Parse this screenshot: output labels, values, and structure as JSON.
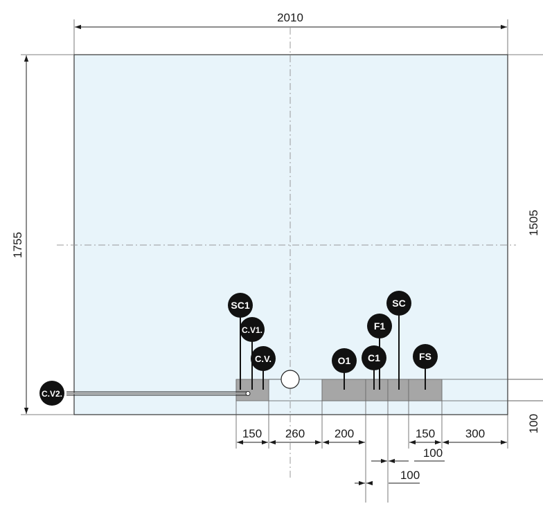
{
  "dimensions": {
    "width": "2010",
    "height": "1755",
    "axis_height": "1505",
    "edge_offset": "100",
    "bottom_segments": [
      "150",
      "260",
      "200",
      "150",
      "300"
    ],
    "lower_offsets": [
      "100",
      "100"
    ]
  },
  "labels": {
    "sc1": "SC1",
    "cv1": "C.V1.",
    "cv": "C.V.",
    "cv2": "C.V2.",
    "o1": "O1",
    "c1": "C1",
    "f1": "F1",
    "sc": "SC",
    "fs": "FS"
  },
  "colors": {
    "room_fill": "#e8f4fa",
    "wall_line": "#333333",
    "fixture_gray": "#a6a6a6",
    "tag_bg": "#111111",
    "tag_text": "#ffffff"
  }
}
